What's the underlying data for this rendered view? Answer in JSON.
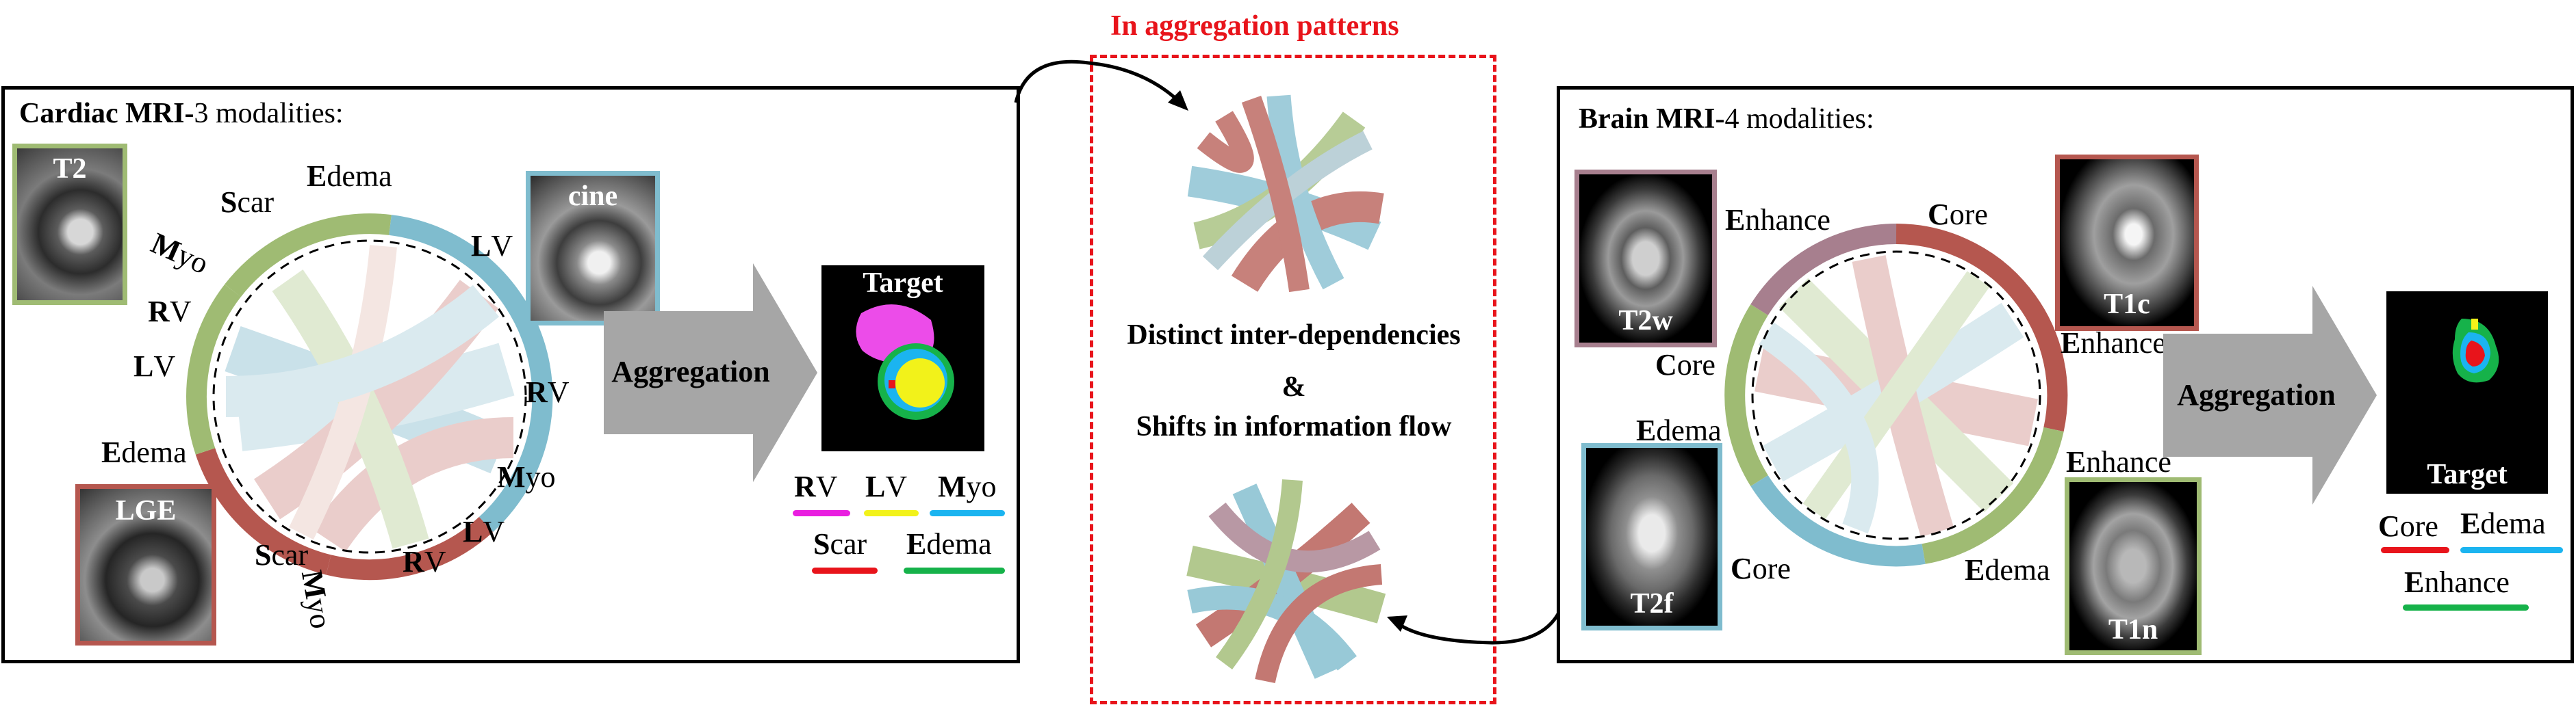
{
  "header": {
    "title": "In aggregation patterns"
  },
  "cardiac": {
    "title_bold": "Cardiac MRI-",
    "title_rest": "3 modalities:",
    "modalities": {
      "t2": "T2",
      "cine": "cine",
      "lge": "LGE"
    },
    "ring_labels": {
      "edema_top": {
        "b": "E",
        "r": "dema"
      },
      "scar_top": {
        "b": "S",
        "r": "car"
      },
      "myo_top": {
        "b": "M",
        "r": "yo"
      },
      "rv_top": {
        "b": "R",
        "r": "V"
      },
      "lv_left": {
        "b": "L",
        "r": "V"
      },
      "edema_left": {
        "b": "E",
        "r": "dema"
      },
      "scar_bottom": {
        "b": "S",
        "r": "car"
      },
      "myo_bottom": {
        "b": "M",
        "r": "yo"
      },
      "rv_bottom": {
        "b": "R",
        "r": "V"
      },
      "lv_bottom": {
        "b": "L",
        "r": "V"
      },
      "myo_right": {
        "b": "M",
        "r": "yo"
      },
      "rv_right": {
        "b": "R",
        "r": "V"
      },
      "lv_right": {
        "b": "L",
        "r": "V"
      }
    },
    "aggregation": "Aggregation",
    "target": "Target",
    "legend": [
      {
        "b": "R",
        "r": "V",
        "color": "#e91ee0"
      },
      {
        "b": "L",
        "r": "V",
        "color": "#f2f21a"
      },
      {
        "b": "M",
        "r": "yo",
        "color": "#1bb4f0"
      },
      {
        "b": "S",
        "r": "car",
        "color": "#e8141b"
      },
      {
        "b": "E",
        "r": "dema",
        "color": "#16b24a"
      }
    ]
  },
  "middle": {
    "line1": "Distinct inter-dependencies",
    "line2": "&",
    "line3": "Shifts in information flow"
  },
  "brain": {
    "title_bold": "Brain MRI-",
    "title_rest": "4 modalities:",
    "modalities": {
      "t2w": "T2w",
      "t1c": "T1c",
      "t2f": "T2f",
      "t1n": "T1n"
    },
    "ring_labels": {
      "enhance_top": {
        "b": "E",
        "r": "nhance"
      },
      "core_top": {
        "b": "C",
        "r": "ore"
      },
      "enhance_right": {
        "b": "E",
        "r": "nhance"
      },
      "core_left": {
        "b": "C",
        "r": "ore"
      },
      "edema_left": {
        "b": "E",
        "r": "dema"
      },
      "enhance_right2": {
        "b": "E",
        "r": "nhance"
      },
      "core_bottom": {
        "b": "C",
        "r": "ore"
      },
      "edema_bottom": {
        "b": "E",
        "r": "dema"
      }
    },
    "aggregation": "Aggregation",
    "target": "Target",
    "legend": [
      {
        "b": "C",
        "r": "ore",
        "color": "#e8141b"
      },
      {
        "b": "E",
        "r": "dema",
        "color": "#1bb4f0"
      },
      {
        "b": "E",
        "r": "nhance",
        "color": "#16b24a"
      }
    ]
  },
  "colors": {
    "red_ring": "#b5574f",
    "green_ring": "#9fbb73",
    "blue_ring": "#7fbcce",
    "mauve_ring": "#a77f8e",
    "dashed_red": "#e8141b",
    "arrow_gray": "#a6a6a6"
  }
}
